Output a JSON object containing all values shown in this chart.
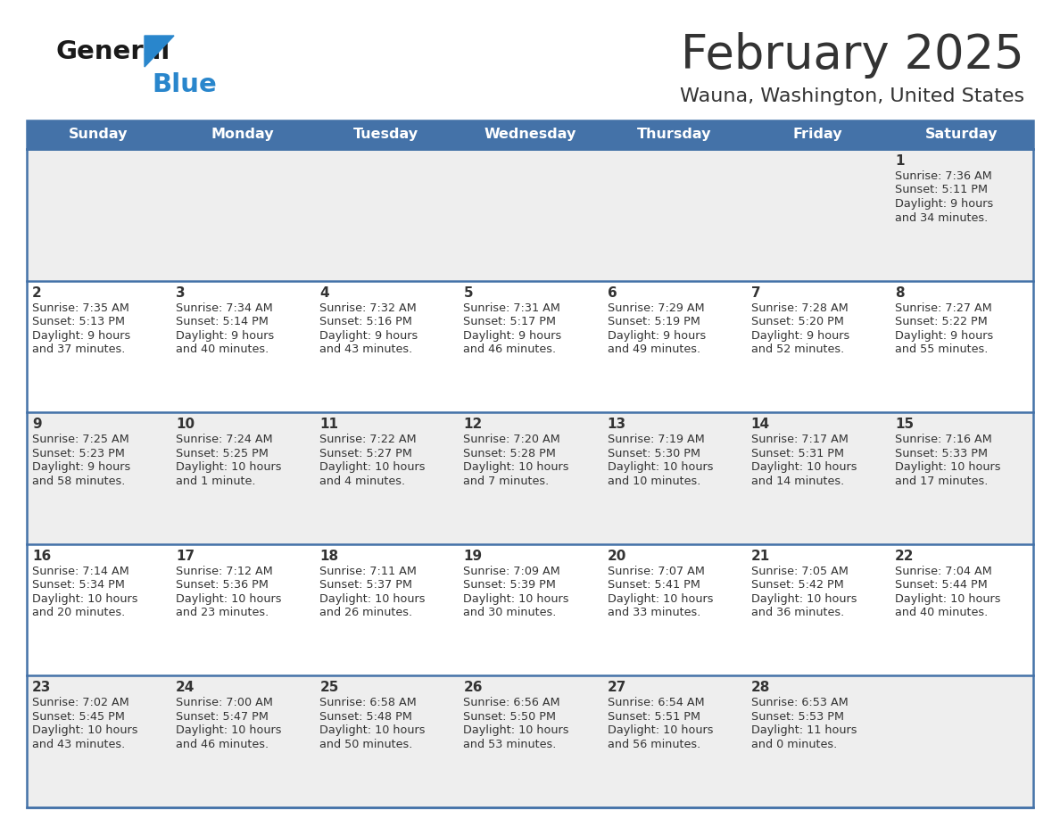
{
  "title": "February 2025",
  "subtitle": "Wauna, Washington, United States",
  "header_bg": "#4472a8",
  "header_text_color": "#ffffff",
  "day_names": [
    "Sunday",
    "Monday",
    "Tuesday",
    "Wednesday",
    "Thursday",
    "Friday",
    "Saturday"
  ],
  "bg_color": "#ffffff",
  "cell_bg_even": "#eeeeee",
  "cell_bg_odd": "#ffffff",
  "text_color": "#333333",
  "line_color": "#4472a8",
  "logo_color_general": "#1a1a1a",
  "logo_color_blue": "#2986cc",
  "calendar": [
    [
      {
        "day": null,
        "sunrise": null,
        "sunset": null,
        "daylight": null
      },
      {
        "day": null,
        "sunrise": null,
        "sunset": null,
        "daylight": null
      },
      {
        "day": null,
        "sunrise": null,
        "sunset": null,
        "daylight": null
      },
      {
        "day": null,
        "sunrise": null,
        "sunset": null,
        "daylight": null
      },
      {
        "day": null,
        "sunrise": null,
        "sunset": null,
        "daylight": null
      },
      {
        "day": null,
        "sunrise": null,
        "sunset": null,
        "daylight": null
      },
      {
        "day": 1,
        "sunrise": "7:36 AM",
        "sunset": "5:11 PM",
        "daylight": "9 hours\nand 34 minutes."
      }
    ],
    [
      {
        "day": 2,
        "sunrise": "7:35 AM",
        "sunset": "5:13 PM",
        "daylight": "9 hours\nand 37 minutes."
      },
      {
        "day": 3,
        "sunrise": "7:34 AM",
        "sunset": "5:14 PM",
        "daylight": "9 hours\nand 40 minutes."
      },
      {
        "day": 4,
        "sunrise": "7:32 AM",
        "sunset": "5:16 PM",
        "daylight": "9 hours\nand 43 minutes."
      },
      {
        "day": 5,
        "sunrise": "7:31 AM",
        "sunset": "5:17 PM",
        "daylight": "9 hours\nand 46 minutes."
      },
      {
        "day": 6,
        "sunrise": "7:29 AM",
        "sunset": "5:19 PM",
        "daylight": "9 hours\nand 49 minutes."
      },
      {
        "day": 7,
        "sunrise": "7:28 AM",
        "sunset": "5:20 PM",
        "daylight": "9 hours\nand 52 minutes."
      },
      {
        "day": 8,
        "sunrise": "7:27 AM",
        "sunset": "5:22 PM",
        "daylight": "9 hours\nand 55 minutes."
      }
    ],
    [
      {
        "day": 9,
        "sunrise": "7:25 AM",
        "sunset": "5:23 PM",
        "daylight": "9 hours\nand 58 minutes."
      },
      {
        "day": 10,
        "sunrise": "7:24 AM",
        "sunset": "5:25 PM",
        "daylight": "10 hours\nand 1 minute."
      },
      {
        "day": 11,
        "sunrise": "7:22 AM",
        "sunset": "5:27 PM",
        "daylight": "10 hours\nand 4 minutes."
      },
      {
        "day": 12,
        "sunrise": "7:20 AM",
        "sunset": "5:28 PM",
        "daylight": "10 hours\nand 7 minutes."
      },
      {
        "day": 13,
        "sunrise": "7:19 AM",
        "sunset": "5:30 PM",
        "daylight": "10 hours\nand 10 minutes."
      },
      {
        "day": 14,
        "sunrise": "7:17 AM",
        "sunset": "5:31 PM",
        "daylight": "10 hours\nand 14 minutes."
      },
      {
        "day": 15,
        "sunrise": "7:16 AM",
        "sunset": "5:33 PM",
        "daylight": "10 hours\nand 17 minutes."
      }
    ],
    [
      {
        "day": 16,
        "sunrise": "7:14 AM",
        "sunset": "5:34 PM",
        "daylight": "10 hours\nand 20 minutes."
      },
      {
        "day": 17,
        "sunrise": "7:12 AM",
        "sunset": "5:36 PM",
        "daylight": "10 hours\nand 23 minutes."
      },
      {
        "day": 18,
        "sunrise": "7:11 AM",
        "sunset": "5:37 PM",
        "daylight": "10 hours\nand 26 minutes."
      },
      {
        "day": 19,
        "sunrise": "7:09 AM",
        "sunset": "5:39 PM",
        "daylight": "10 hours\nand 30 minutes."
      },
      {
        "day": 20,
        "sunrise": "7:07 AM",
        "sunset": "5:41 PM",
        "daylight": "10 hours\nand 33 minutes."
      },
      {
        "day": 21,
        "sunrise": "7:05 AM",
        "sunset": "5:42 PM",
        "daylight": "10 hours\nand 36 minutes."
      },
      {
        "day": 22,
        "sunrise": "7:04 AM",
        "sunset": "5:44 PM",
        "daylight": "10 hours\nand 40 minutes."
      }
    ],
    [
      {
        "day": 23,
        "sunrise": "7:02 AM",
        "sunset": "5:45 PM",
        "daylight": "10 hours\nand 43 minutes."
      },
      {
        "day": 24,
        "sunrise": "7:00 AM",
        "sunset": "5:47 PM",
        "daylight": "10 hours\nand 46 minutes."
      },
      {
        "day": 25,
        "sunrise": "6:58 AM",
        "sunset": "5:48 PM",
        "daylight": "10 hours\nand 50 minutes."
      },
      {
        "day": 26,
        "sunrise": "6:56 AM",
        "sunset": "5:50 PM",
        "daylight": "10 hours\nand 53 minutes."
      },
      {
        "day": 27,
        "sunrise": "6:54 AM",
        "sunset": "5:51 PM",
        "daylight": "10 hours\nand 56 minutes."
      },
      {
        "day": 28,
        "sunrise": "6:53 AM",
        "sunset": "5:53 PM",
        "daylight": "11 hours\nand 0 minutes."
      },
      {
        "day": null,
        "sunrise": null,
        "sunset": null,
        "daylight": null
      }
    ]
  ]
}
